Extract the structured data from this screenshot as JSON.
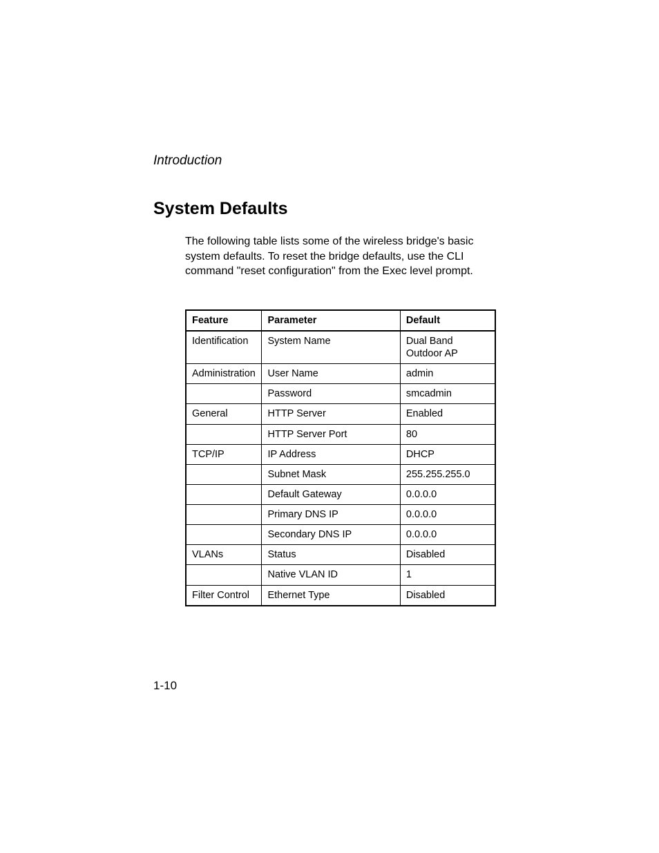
{
  "chapter": "Introduction",
  "heading": "System Defaults",
  "body": "The following table lists some of the wireless bridge's basic system defaults. To reset the bridge defaults, use the CLI command \"reset configuration\" from the Exec level prompt.",
  "table": {
    "headers": {
      "feature": "Feature",
      "parameter": "Parameter",
      "default": "Default"
    },
    "rows": [
      {
        "feature": "Identification",
        "parameter": "System Name",
        "default": "Dual Band Outdoor AP"
      },
      {
        "feature": "Administration",
        "parameter": "User Name",
        "default": "admin"
      },
      {
        "feature": "",
        "parameter": "Password",
        "default": "smcadmin"
      },
      {
        "feature": "General",
        "parameter": "HTTP Server",
        "default": "Enabled"
      },
      {
        "feature": "",
        "parameter": "HTTP Server Port",
        "default": "80"
      },
      {
        "feature": "TCP/IP",
        "parameter": "IP Address",
        "default": "DHCP"
      },
      {
        "feature": "",
        "parameter": "Subnet Mask",
        "default": "255.255.255.0"
      },
      {
        "feature": "",
        "parameter": "Default Gateway",
        "default": "0.0.0.0"
      },
      {
        "feature": "",
        "parameter": "Primary DNS IP",
        "default": "0.0.0.0"
      },
      {
        "feature": "",
        "parameter": "Secondary DNS IP",
        "default": "0.0.0.0"
      },
      {
        "feature": "VLANs",
        "parameter": "Status",
        "default": "Disabled"
      },
      {
        "feature": "",
        "parameter": "Native VLAN ID",
        "default": "1"
      },
      {
        "feature": "Filter Control",
        "parameter": "Ethernet Type",
        "default": "Disabled"
      }
    ]
  },
  "pagenum": "1-10"
}
